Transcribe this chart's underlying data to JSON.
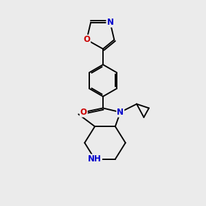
{
  "background_color": "#ebebeb",
  "bond_color": "#000000",
  "atom_colors": {
    "N": "#0000cc",
    "O": "#cc0000",
    "C": "#000000"
  },
  "font_size_atom": 8.5,
  "figsize": [
    3.0,
    3.0
  ],
  "dpi": 100
}
